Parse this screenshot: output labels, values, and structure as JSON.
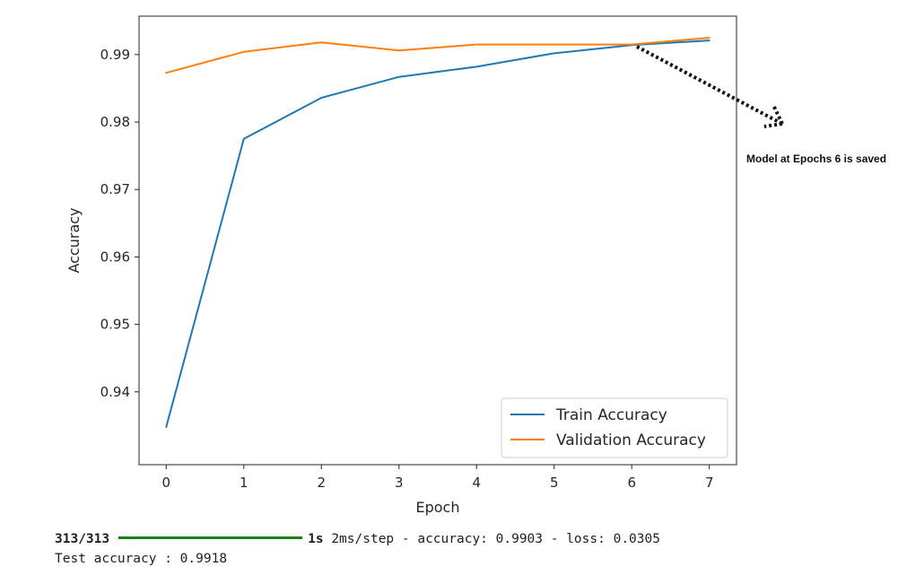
{
  "chart_data": {
    "type": "line",
    "title": "",
    "xlabel": "Epoch",
    "ylabel": "Accuracy",
    "x": [
      0,
      1,
      2,
      3,
      4,
      5,
      6,
      7
    ],
    "xlim": [
      -0.35,
      7.35
    ],
    "ylim": [
      0.9292,
      0.9957
    ],
    "xticks": [
      0,
      1,
      2,
      3,
      4,
      5,
      6,
      7
    ],
    "yticks": [
      0.94,
      0.95,
      0.96,
      0.97,
      0.98,
      0.99
    ],
    "ytick_labels": [
      "0.94",
      "0.95",
      "0.96",
      "0.97",
      "0.98",
      "0.99"
    ],
    "grid": false,
    "legend_position": "lower-right",
    "series": [
      {
        "name": "Train Accuracy",
        "color": "#1f77b4",
        "values": [
          0.9348,
          0.9775,
          0.9836,
          0.9867,
          0.9882,
          0.9902,
          0.9914,
          0.9921
        ]
      },
      {
        "name": "Validation Accuracy",
        "color": "#ff7f0e",
        "values": [
          0.9873,
          0.9904,
          0.9918,
          0.9906,
          0.9915,
          0.9915,
          0.9915,
          0.9925
        ]
      }
    ],
    "annotation": {
      "text": "Model at Epochs 6 is saved",
      "target_x": 6,
      "style": "dotted-arrow"
    }
  },
  "console": {
    "progress_count": "313/313",
    "time": "1s",
    "metrics": "2ms/step - accuracy: 0.9903 - loss: 0.0305",
    "test_line": "Test accuracy : 0.9918"
  }
}
